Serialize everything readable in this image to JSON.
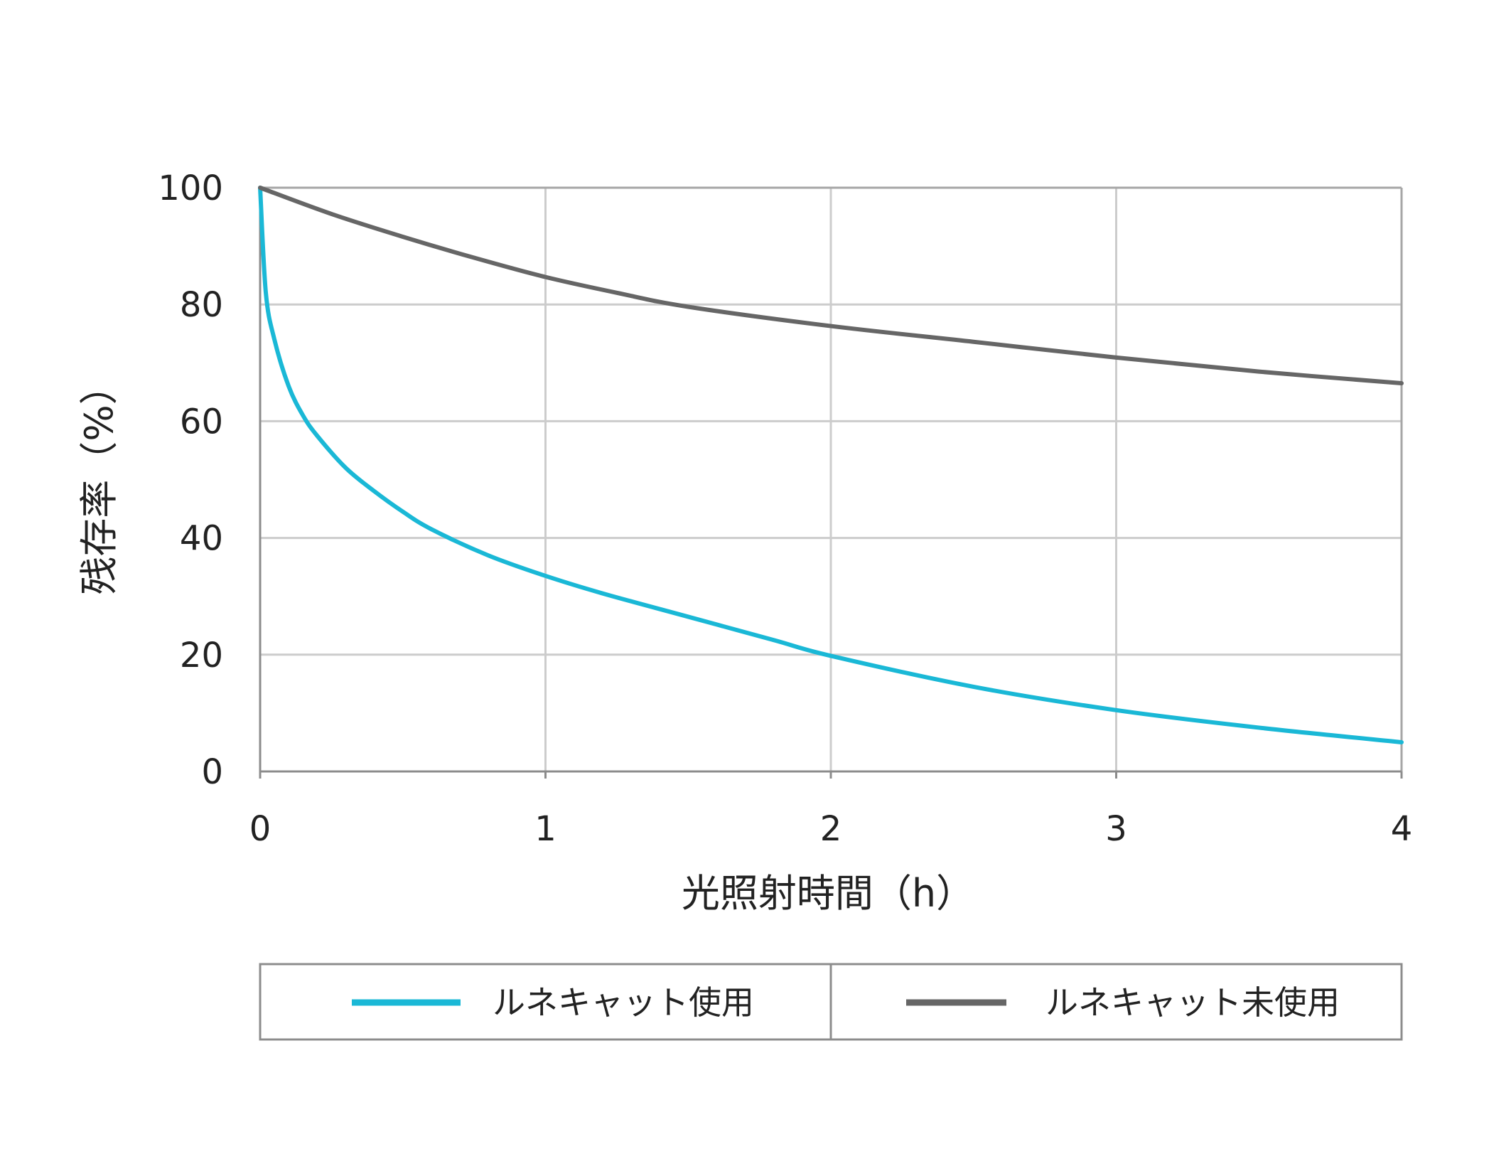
{
  "chart_data": {
    "type": "line",
    "xlabel": "光照射時間（h）",
    "ylabel": "残存率（%）",
    "xlim": [
      0,
      4
    ],
    "ylim": [
      0,
      100
    ],
    "xticks": [
      0,
      1,
      2,
      3,
      4
    ],
    "yticks": [
      0,
      20,
      40,
      60,
      80,
      100
    ],
    "grid": true,
    "legend_position": "bottom",
    "series": [
      {
        "name": "ルネキャット使用",
        "color": "#1ab8d6",
        "x": [
          0,
          0.02,
          0.05,
          0.1,
          0.15,
          0.2,
          0.3,
          0.4,
          0.5,
          0.6,
          0.8,
          1.0,
          1.2,
          1.5,
          1.8,
          2.0,
          2.5,
          3.0,
          3.5,
          4.0
        ],
        "y": [
          100,
          82,
          74,
          66,
          61,
          57.5,
          52,
          48,
          44.5,
          41.5,
          37,
          33.5,
          30.5,
          26.5,
          22.5,
          19.8,
          14.5,
          10.5,
          7.5,
          5
        ]
      },
      {
        "name": "ルネキャット未使用",
        "color": "#666666",
        "x": [
          0,
          0.25,
          0.5,
          0.75,
          1.0,
          1.25,
          1.5,
          2.0,
          2.5,
          3.0,
          3.5,
          4.0
        ],
        "y": [
          100,
          95.5,
          91.6,
          88,
          84.7,
          82,
          79.6,
          76.3,
          73.6,
          70.9,
          68.5,
          66.5
        ]
      }
    ]
  }
}
